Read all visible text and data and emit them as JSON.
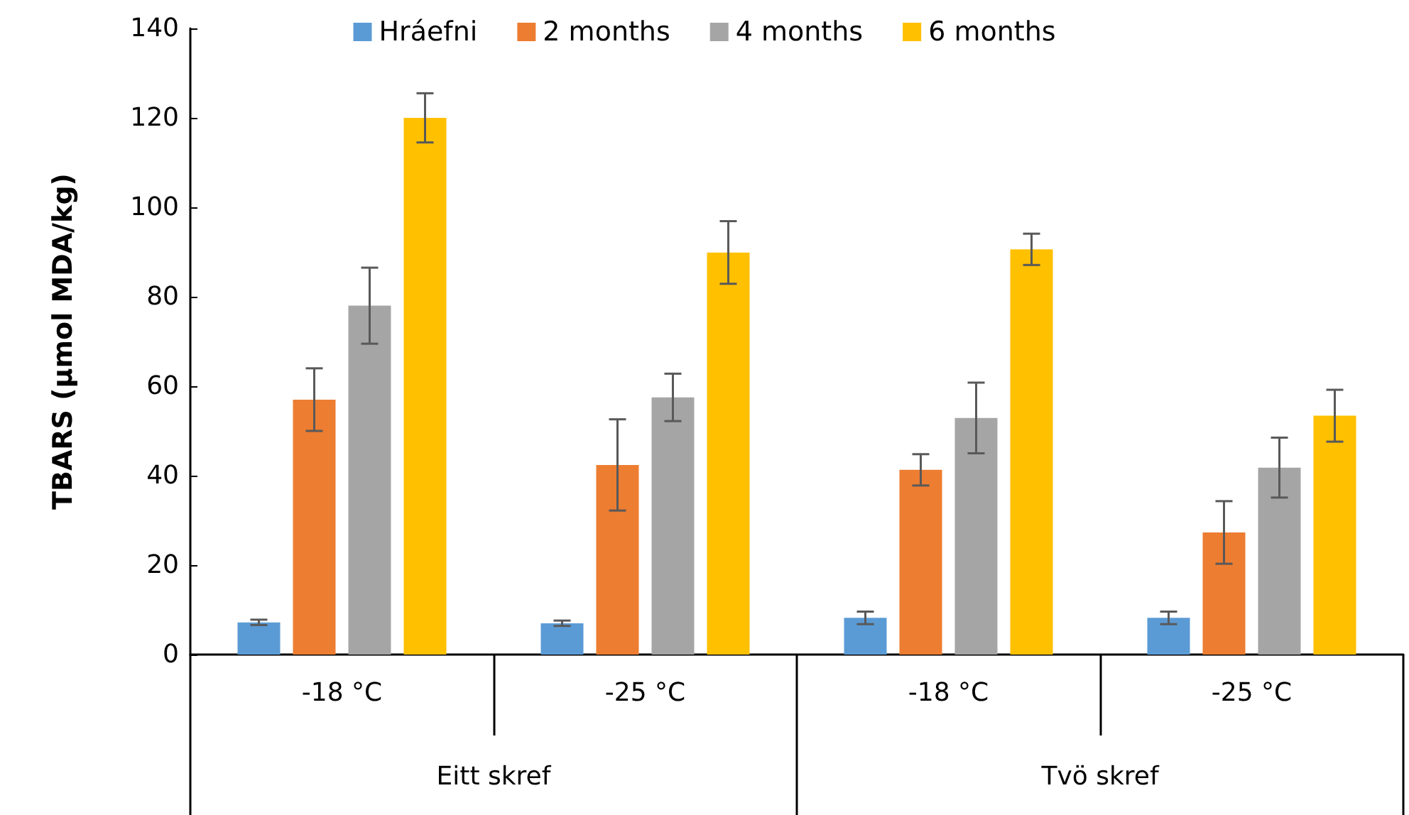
{
  "chart_data": {
    "type": "bar",
    "ylabel": "TBARS (µmol MDA/kg)",
    "categories": [
      "-18 °C",
      "-25 °C",
      "-18 °C",
      "-25 °C"
    ],
    "annotations": [
      "Eitt skref",
      "Tvö skref"
    ],
    "series": [
      {
        "name": "Hráefni",
        "color": "#5b9bd5",
        "values": [
          7.2,
          7.0,
          8.2,
          8.2
        ],
        "errors": [
          0.6,
          0.6,
          1.4,
          1.4
        ]
      },
      {
        "name": "2 months",
        "color": "#ed7d31",
        "values": [
          57,
          42.4,
          41.3,
          27.3
        ],
        "errors": [
          7,
          10.2,
          3.5,
          7
        ]
      },
      {
        "name": "4 months",
        "color": "#a5a5a5",
        "values": [
          78,
          57.5,
          52.9,
          41.8
        ],
        "errors": [
          8.5,
          5.3,
          7.9,
          6.7
        ]
      },
      {
        "name": "6 months",
        "color": "#ffc000",
        "values": [
          120,
          89.9,
          90.6,
          53.4
        ],
        "errors": [
          5.5,
          7,
          3.5,
          5.8
        ]
      }
    ],
    "ylim": [
      0,
      140
    ],
    "yticks": [
      0,
      20,
      40,
      60,
      80,
      100,
      120,
      140
    ],
    "grid": false,
    "legend": "top"
  }
}
